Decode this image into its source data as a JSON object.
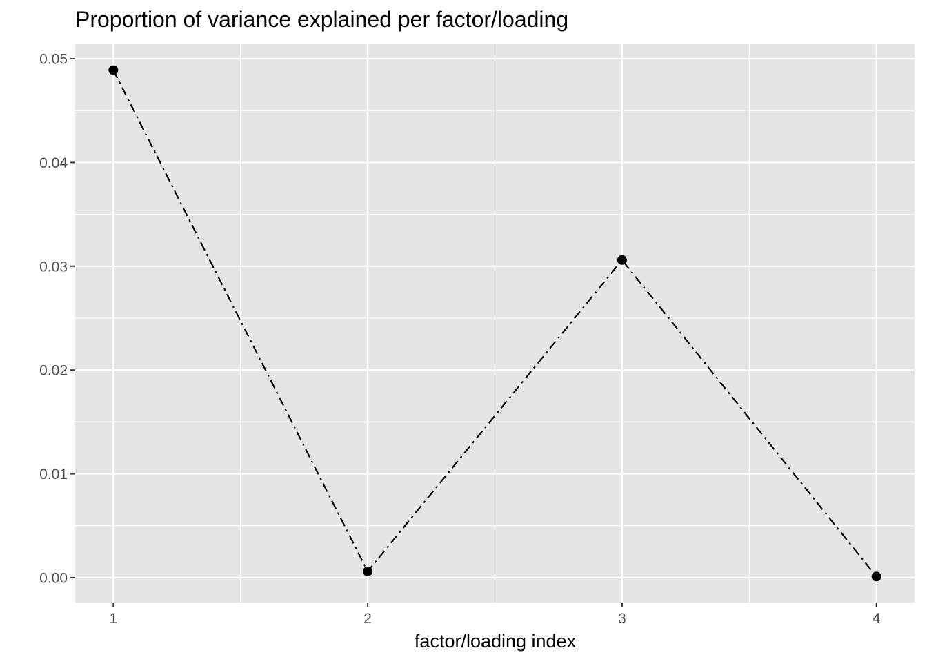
{
  "chart_data": {
    "type": "line",
    "title": "Proportion of variance explained per factor/loading",
    "xlabel": "factor/loading index",
    "ylabel": "",
    "x": [
      1,
      2,
      3,
      4
    ],
    "xticks": [
      "1",
      "2",
      "3",
      "4"
    ],
    "xlim": [
      0.85,
      4.15
    ],
    "ylim": [
      -0.0024,
      0.0514
    ],
    "yticks": [
      0.0,
      0.01,
      0.02,
      0.03,
      0.04,
      0.05
    ],
    "ytick_labels": [
      "0.00",
      "0.01",
      "0.02",
      "0.03",
      "0.04",
      "0.05"
    ],
    "series": [
      {
        "values": [
          0.0489,
          0.0006,
          0.0306,
          0.0001
        ],
        "line_style": "dotdash",
        "marker": "circle",
        "color": "#000000"
      }
    ],
    "grid": true,
    "legend": "none",
    "colors": {
      "panel_background": "#e5e5e5",
      "grid_line": "#ffffff",
      "tick_text": "#4d4d4d",
      "tick_mark": "#333333"
    }
  }
}
